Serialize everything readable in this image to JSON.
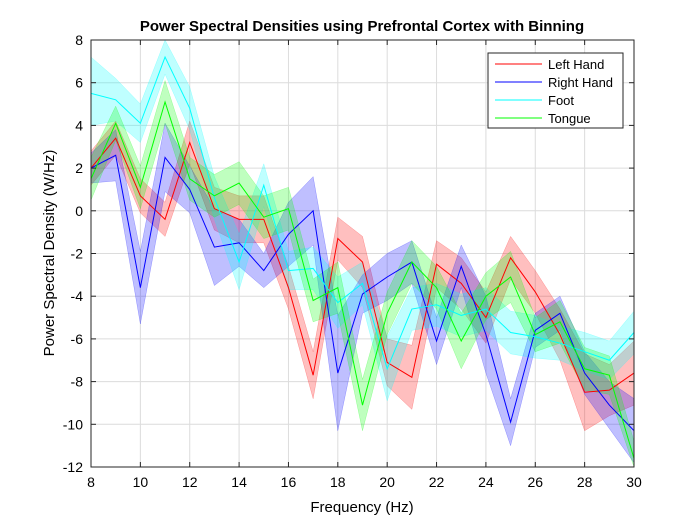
{
  "chart_data": {
    "type": "line",
    "title": "Power Spectral Densities using Prefrontal Cortex with Binning",
    "xlabel": "Frequency (Hz)",
    "ylabel": "Power Spectral Density (W/Hz)",
    "xlim": [
      8,
      30
    ],
    "ylim": [
      -12,
      8
    ],
    "xticks": [
      8,
      10,
      12,
      14,
      16,
      18,
      20,
      22,
      24,
      26,
      28,
      30
    ],
    "yticks": [
      8,
      6,
      4,
      2,
      0,
      -2,
      -4,
      -6,
      -8,
      -10,
      -12
    ],
    "grid": true,
    "legend_position": "top-right",
    "x": [
      8,
      9,
      10,
      11,
      12,
      13,
      14,
      15,
      16,
      17,
      18,
      19,
      20,
      21,
      22,
      23,
      24,
      25,
      26,
      27,
      28,
      29,
      30
    ],
    "series": [
      {
        "name": "Left Hand",
        "color": "#ff0000",
        "values": [
          2.0,
          3.4,
          0.7,
          -0.4,
          3.2,
          0.1,
          -0.4,
          -0.4,
          -3.6,
          -7.7,
          -1.3,
          -2.4,
          -7.1,
          -7.8,
          -2.5,
          -3.4,
          -5.0,
          -2.2,
          -3.8,
          -5.8,
          -8.5,
          -8.4,
          -7.6
        ],
        "lower": [
          1.2,
          2.6,
          -0.1,
          -1.2,
          2.2,
          -0.9,
          -1.5,
          -1.5,
          -4.6,
          -8.8,
          -2.3,
          -3.6,
          -8.2,
          -9.3,
          -3.6,
          -4.6,
          -6.2,
          -3.2,
          -4.8,
          -7.0,
          -10.3,
          -9.6,
          -9.1
        ],
        "upper": [
          2.8,
          4.2,
          1.5,
          0.4,
          4.2,
          1.1,
          0.7,
          0.7,
          -2.6,
          -6.6,
          -0.3,
          -1.2,
          -6.0,
          -6.3,
          -1.4,
          -2.2,
          -3.8,
          -1.2,
          -2.8,
          -4.6,
          -6.7,
          -7.2,
          -6.1
        ]
      },
      {
        "name": "Right Hand",
        "color": "#0000ff",
        "values": [
          2.0,
          2.6,
          -3.6,
          2.5,
          1.0,
          -1.7,
          -1.5,
          -2.8,
          -1.1,
          0.0,
          -7.6,
          -3.9,
          -3.1,
          -2.4,
          -6.1,
          -2.6,
          -5.8,
          -9.9,
          -5.6,
          -4.8,
          -7.6,
          -9.1,
          -10.3
        ],
        "lower": [
          1.3,
          1.4,
          -5.3,
          0.9,
          -0.1,
          -3.5,
          -2.6,
          -3.6,
          -2.6,
          -1.6,
          -10.3,
          -4.8,
          -4.2,
          -3.4,
          -7.2,
          -3.6,
          -7.6,
          -11.0,
          -6.4,
          -5.6,
          -8.6,
          -10.2,
          -11.8
        ],
        "upper": [
          2.7,
          3.8,
          -1.9,
          4.1,
          2.1,
          0.1,
          -0.4,
          -2.0,
          0.4,
          1.6,
          -4.9,
          -3.0,
          -2.0,
          -1.4,
          -5.0,
          -1.6,
          -4.0,
          -8.8,
          -4.8,
          -4.0,
          -6.6,
          -8.0,
          -8.8
        ]
      },
      {
        "name": "Foot",
        "color": "#00ffff",
        "values": [
          5.5,
          5.2,
          4.1,
          7.2,
          4.8,
          0.6,
          -2.4,
          1.2,
          -2.8,
          -2.7,
          -4.3,
          -3.4,
          -7.4,
          -4.6,
          -4.4,
          -4.9,
          -4.6,
          -5.7,
          -5.9,
          -6.2,
          -6.6,
          -7.0,
          -5.7
        ],
        "lower": [
          4.0,
          4.2,
          3.2,
          6.4,
          3.8,
          -0.4,
          -3.7,
          0.2,
          -3.7,
          -3.7,
          -5.5,
          -4.4,
          -8.9,
          -5.6,
          -5.4,
          -5.9,
          -5.6,
          -6.7,
          -6.9,
          -7.0,
          -7.5,
          -7.9,
          -6.7
        ],
        "upper": [
          7.2,
          6.2,
          5.0,
          8.0,
          5.8,
          1.6,
          -1.1,
          2.2,
          -1.9,
          -1.7,
          -3.1,
          -2.4,
          -5.9,
          -3.6,
          -3.4,
          -3.9,
          -3.6,
          -4.7,
          -4.9,
          -5.4,
          -5.7,
          -6.1,
          -4.7
        ]
      },
      {
        "name": "Tongue",
        "color": "#00ff00",
        "values": [
          1.5,
          4.1,
          1.1,
          5.1,
          1.5,
          0.7,
          1.3,
          -0.3,
          0.1,
          -4.2,
          -3.6,
          -9.1,
          -4.8,
          -2.4,
          -3.6,
          -6.1,
          -4.0,
          -3.1,
          -5.8,
          -5.2,
          -7.4,
          -7.7,
          -11.6
        ],
        "lower": [
          0.5,
          3.3,
          0.1,
          4.1,
          0.5,
          -0.3,
          0.3,
          -1.3,
          -0.9,
          -5.2,
          -4.8,
          -10.3,
          -5.8,
          -3.4,
          -4.6,
          -7.4,
          -5.1,
          -4.3,
          -6.6,
          -6.2,
          -8.4,
          -8.6,
          -12.0
        ],
        "upper": [
          2.5,
          4.9,
          2.1,
          6.1,
          2.5,
          1.7,
          2.3,
          0.7,
          1.1,
          -3.2,
          -2.4,
          -7.9,
          -3.8,
          -1.4,
          -2.6,
          -4.8,
          -2.9,
          -1.9,
          -5.0,
          -4.2,
          -6.4,
          -6.8,
          -10.8
        ]
      }
    ]
  }
}
